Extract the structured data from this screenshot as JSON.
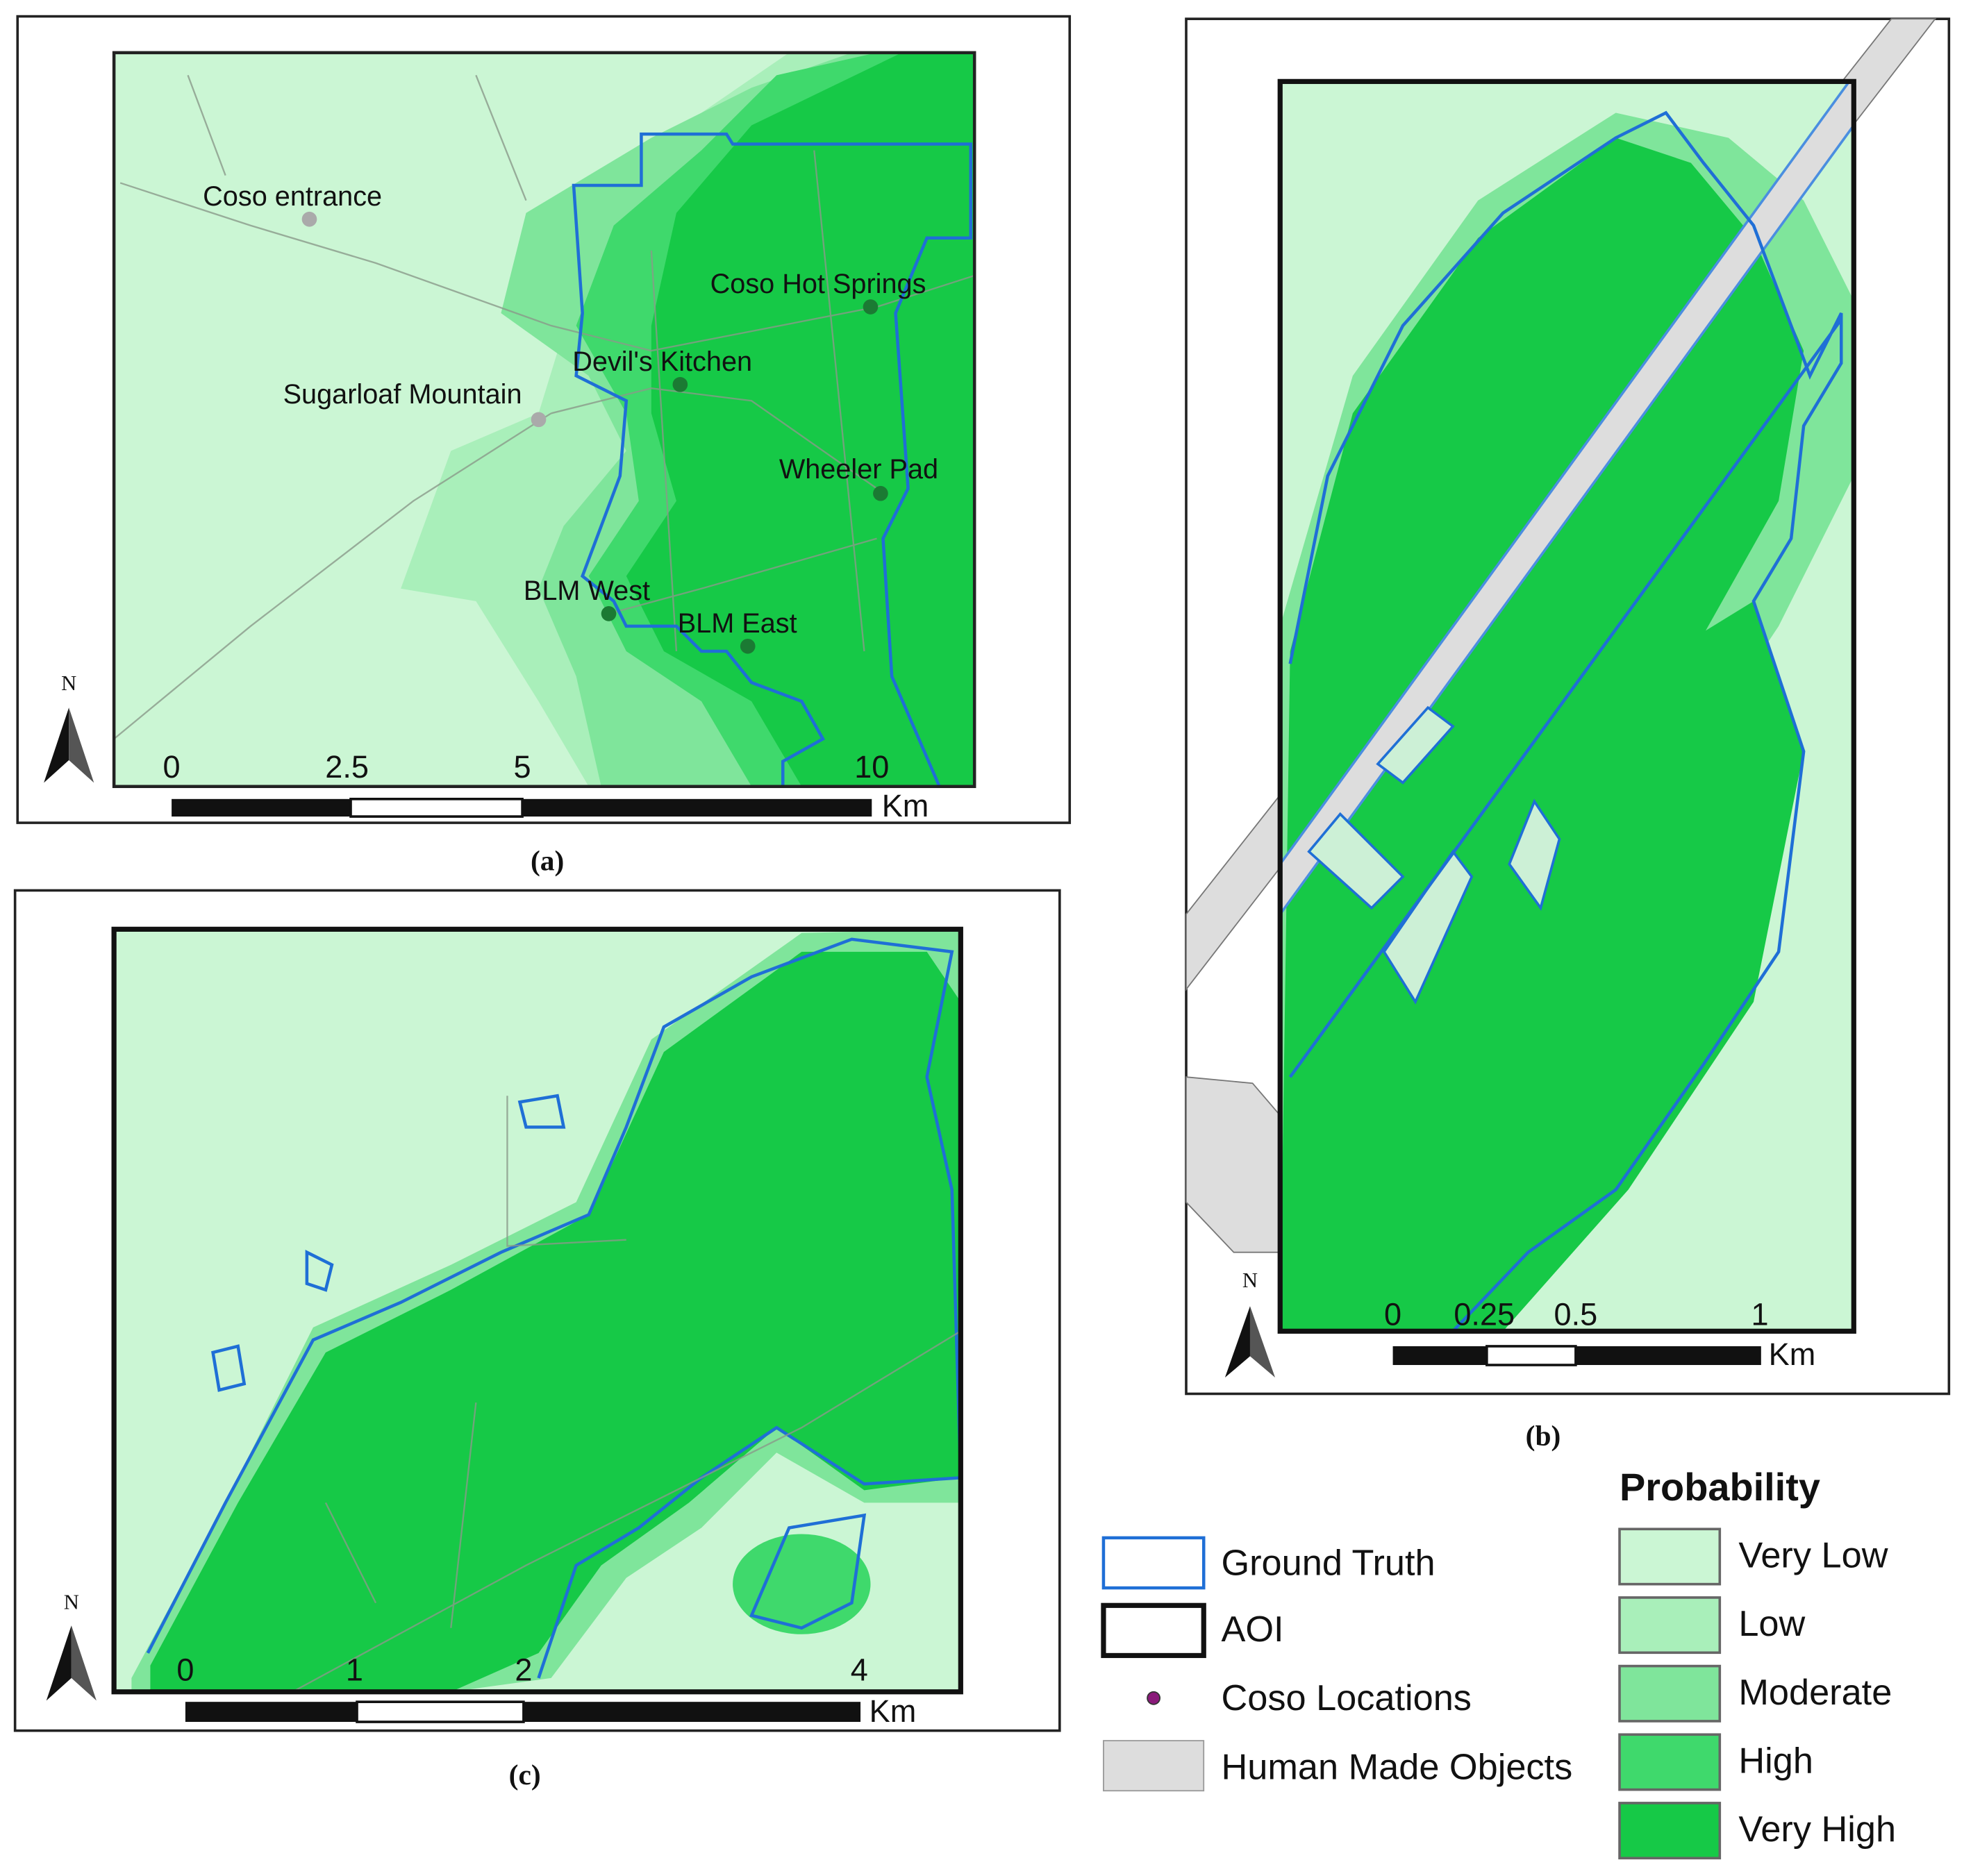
{
  "panels": [
    {
      "label": "(a)",
      "north": "N",
      "places": [
        "Coso entrance",
        "Coso Hot Springs",
        "Devil's Kitchen",
        "Sugarloaf Mountain",
        "Wheeler Pad",
        "BLM West",
        "BLM East"
      ],
      "scale": {
        "ticks": [
          "0",
          "2.5",
          "5",
          "10"
        ],
        "unit": "Km"
      }
    },
    {
      "label": "(b)",
      "north": "N",
      "scale": {
        "ticks": [
          "0",
          "0.25",
          "0.5",
          "1"
        ],
        "unit": "Km"
      }
    },
    {
      "label": "(c)",
      "north": "N",
      "scale": {
        "ticks": [
          "0",
          "1",
          "2",
          "4"
        ],
        "unit": "Km"
      }
    }
  ],
  "legend": {
    "items": [
      "Ground Truth",
      "AOI",
      "Coso Locations",
      "Human Made Objects"
    ],
    "title": "Probability",
    "classes": [
      {
        "name": "Very Low",
        "color": "#cbf6d4"
      },
      {
        "name": "Low",
        "color": "#a9efba"
      },
      {
        "name": "Moderate",
        "color": "#7fe59b"
      },
      {
        "name": "High",
        "color": "#3fd96c"
      },
      {
        "name": "Very High",
        "color": "#16c947"
      }
    ]
  }
}
